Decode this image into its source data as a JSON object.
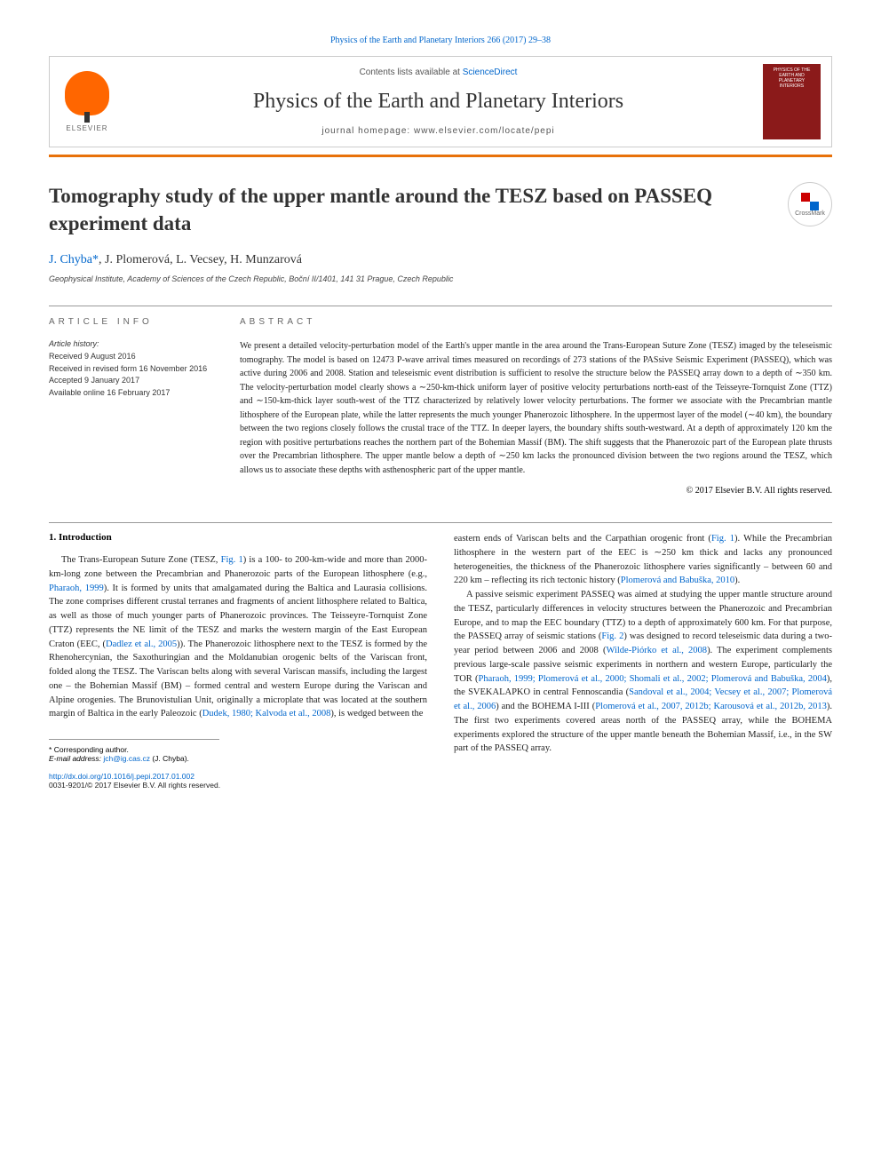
{
  "header": {
    "citation": "Physics of the Earth and Planetary Interiors 266 (2017) 29–38",
    "contents_prefix": "Contents lists available at ",
    "contents_link": "ScienceDirect",
    "journal_name": "Physics of the Earth and Planetary Interiors",
    "homepage_prefix": "journal homepage: ",
    "homepage_url": "www.elsevier.com/locate/pepi",
    "publisher": "ELSEVIER",
    "cover_text": "PHYSICS OF THE EARTH AND PLANETARY INTERIORS"
  },
  "article": {
    "title": "Tomography study of the upper mantle around the TESZ based on PASSEQ experiment data",
    "crossmark": "CrossMark",
    "authors_html": "J. Chyba *, J. Plomerová, L. Vecsey, H. Munzarová",
    "author_1": "J. Chyba",
    "author_star": "*",
    "author_rest": ", J. Plomerová, L. Vecsey, H. Munzarová",
    "affiliation": "Geophysical Institute, Academy of Sciences of the Czech Republic, Boční II/1401, 141 31 Prague, Czech Republic"
  },
  "info": {
    "label": "ARTICLE INFO",
    "history_label": "Article history:",
    "received": "Received 9 August 2016",
    "revised": "Received in revised form 16 November 2016",
    "accepted": "Accepted 9 January 2017",
    "online": "Available online 16 February 2017"
  },
  "abstract": {
    "label": "ABSTRACT",
    "text": "We present a detailed velocity-perturbation model of the Earth's upper mantle in the area around the Trans-European Suture Zone (TESZ) imaged by the teleseismic tomography. The model is based on 12473 P-wave arrival times measured on recordings of 273 stations of the PASsive Seismic Experiment (PASSEQ), which was active during 2006 and 2008. Station and teleseismic event distribution is sufficient to resolve the structure below the PASSEQ array down to a depth of ∼350 km. The velocity-perturbation model clearly shows a ∼250-km-thick uniform layer of positive velocity perturbations north-east of the Teisseyre-Tornquist Zone (TTZ) and ∼150-km-thick layer south-west of the TTZ characterized by relatively lower velocity perturbations. The former we associate with the Precambrian mantle lithosphere of the European plate, while the latter represents the much younger Phanerozoic lithosphere. In the uppermost layer of the model (∼40 km), the boundary between the two regions closely follows the crustal trace of the TTZ. In deeper layers, the boundary shifts south-westward. At a depth of approximately 120 km the region with positive perturbations reaches the northern part of the Bohemian Massif (BM). The shift suggests that the Phanerozoic part of the European plate thrusts over the Precambrian lithosphere. The upper mantle below a depth of ∼250 km lacks the pronounced division between the two regions around the TESZ, which allows us to associate these depths with asthenospheric part of the upper mantle.",
    "copyright": "© 2017 Elsevier B.V. All rights reserved."
  },
  "body": {
    "heading": "1. Introduction",
    "col1_p1_a": "The Trans-European Suture Zone (TESZ, ",
    "col1_p1_fig": "Fig. 1",
    "col1_p1_b": ") is a 100- to 200-km-wide and more than 2000-km-long zone between the Precambrian and Phanerozoic parts of the European lithosphere (e.g., ",
    "col1_p1_ref1": "Pharaoh, 1999",
    "col1_p1_c": "). It is formed by units that amalgamated during the Baltica and Laurasia collisions. The zone comprises different crustal terranes and fragments of ancient lithosphere related to Baltica, as well as those of much younger parts of Phanerozoic provinces. The Teisseyre-Tornquist Zone (TTZ) represents the NE limit of the TESZ and marks the western margin of the East European Craton (EEC, (",
    "col1_p1_ref2": "Dadlez et al., 2005",
    "col1_p1_d": ")). The Phanerozoic lithosphere next to the TESZ is formed by the Rhenohercynian, the Saxothuringian and the Moldanubian orogenic belts of the Variscan front, folded along the TESZ. The Variscan belts along with several Variscan massifs, including the largest one – the Bohemian Massif (BM) – formed central and western Europe during the Variscan and Alpine orogenies. The Brunovistulian Unit, originally a microplate that was located at the southern margin of Baltica in the early Paleozoic (",
    "col1_p1_ref3": "Dudek, 1980; Kalvoda et al., 2008",
    "col1_p1_e": "), is wedged between the",
    "col2_p1_a": "eastern ends of Variscan belts and the Carpathian orogenic front (",
    "col2_p1_fig": "Fig. 1",
    "col2_p1_b": "). While the Precambrian lithosphere in the western part of the EEC is ∼250 km thick and lacks any pronounced heterogeneities, the thickness of the Phanerozoic lithosphere varies significantly – between 60 and 220 km – reflecting its rich tectonic history (",
    "col2_p1_ref1": "Plomerová and Babuška, 2010",
    "col2_p1_c": ").",
    "col2_p2_a": "A passive seismic experiment PASSEQ was aimed at studying the upper mantle structure around the TESZ, particularly differences in velocity structures between the Phanerozoic and Precambrian Europe, and to map the EEC boundary (TTZ) to a depth of approximately 600 km. For that purpose, the PASSEQ array of seismic stations (",
    "col2_p2_fig": "Fig. 2",
    "col2_p2_b": ") was designed to record teleseismic data during a two-year period between 2006 and 2008 (",
    "col2_p2_ref1": "Wilde-Piórko et al., 2008",
    "col2_p2_c": "). The experiment complements previous large-scale passive seismic experiments in northern and western Europe, particularly the TOR (",
    "col2_p2_ref2": "Pharaoh, 1999; Plomerová et al., 2000; Shomali et al., 2002; Plomerová and Babuška, 2004",
    "col2_p2_d": "), the SVEKALAPKO in central Fennoscandia (",
    "col2_p2_ref3": "Sandoval et al., 2004; Vecsey et al., 2007; Plomerová et al., 2006",
    "col2_p2_e": ") and the BOHEMA I-III (",
    "col2_p2_ref4": "Plomerová et al., 2007, 2012b; Karousová et al., 2012b, 2013",
    "col2_p2_f": "). The first two experiments covered areas north of the PASSEQ array, while the BOHEMA experiments explored the structure of the upper mantle beneath the Bohemian Massif, i.e., in the SW part of the PASSEQ array."
  },
  "corr": {
    "star": "*",
    "label": "Corresponding author.",
    "email_label": "E-mail address: ",
    "email": "jch@ig.cas.cz",
    "email_who": " (J. Chyba)."
  },
  "footer": {
    "doi": "http://dx.doi.org/10.1016/j.pepi.2017.01.002",
    "issn": "0031-9201/© 2017 Elsevier B.V. All rights reserved."
  },
  "colors": {
    "link": "#0066cc",
    "orange": "#e8710a",
    "elsevier_orange": "#ff6600",
    "cover_red": "#8b1a1a"
  }
}
